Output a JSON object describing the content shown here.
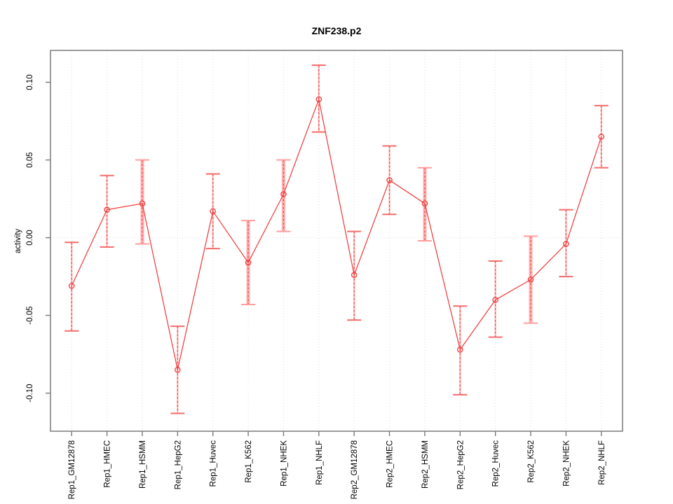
{
  "figure": {
    "title": "ZNF238.p2"
  },
  "chart_data": {
    "type": "line",
    "title": "ZNF238.p2",
    "xlabel": "",
    "ylabel": "activity",
    "legend": "none",
    "marker": "open-circle",
    "error_bars": true,
    "grid": "dotted vertical gridline at each category; dotted horizontal line at 0",
    "categories": [
      "Rep1_GM12878",
      "Rep1_HMEC",
      "Rep1_HSMM",
      "Rep1_HepG2",
      "Rep1_Huvec",
      "Rep1_K562",
      "Rep1_NHEK",
      "Rep1_NHLF",
      "Rep2_GM12878",
      "Rep2_HMEC",
      "Rep2_HSMM",
      "Rep2_HepG2",
      "Rep2_Huvec",
      "Rep2_K562",
      "Rep2_NHEK",
      "Rep2_NHLF"
    ],
    "series": [
      {
        "name": "activity",
        "values": [
          -0.031,
          0.018,
          0.022,
          -0.085,
          0.017,
          -0.016,
          0.028,
          0.089,
          -0.024,
          0.037,
          0.022,
          -0.072,
          -0.04,
          -0.027,
          -0.004,
          0.065
        ],
        "error_upper": [
          -0.003,
          0.04,
          0.05,
          -0.057,
          0.041,
          0.011,
          0.05,
          0.111,
          0.004,
          0.059,
          0.045,
          -0.044,
          -0.015,
          0.001,
          0.018,
          0.085
        ],
        "error_lower": [
          -0.06,
          -0.006,
          -0.004,
          -0.113,
          -0.007,
          -0.043,
          0.004,
          0.068,
          -0.053,
          0.015,
          -0.002,
          -0.101,
          -0.064,
          -0.055,
          -0.025,
          0.045
        ],
        "wide_error_bar": [
          false,
          false,
          true,
          false,
          false,
          true,
          true,
          false,
          false,
          false,
          true,
          false,
          false,
          true,
          false,
          false
        ]
      }
    ],
    "ylim": [
      -0.1245,
      0.1205
    ],
    "xlim": [
      0.4,
      16.6
    ],
    "yticks": [
      -0.1,
      -0.05,
      0.0,
      0.05,
      0.1
    ],
    "ytick_labels": [
      "-0.10",
      "-0.05",
      "0.00",
      "0.05",
      "0.10"
    ]
  },
  "colors": {
    "line": "#ef4444",
    "marker": "#ef4444",
    "error_bar_wide": "#ffafaf",
    "error_bar_narrow": "#ffb9b9",
    "error_bar_dash": "#ef4848",
    "cap_wide": "#ff9d9d",
    "cap_narrow": "#f66a6a",
    "grid": "#dcdcdc",
    "zero_line": "#dcdcdc",
    "axis_box": "#7a7a7a",
    "tick": "#7a7a7a",
    "text": "#000000"
  }
}
